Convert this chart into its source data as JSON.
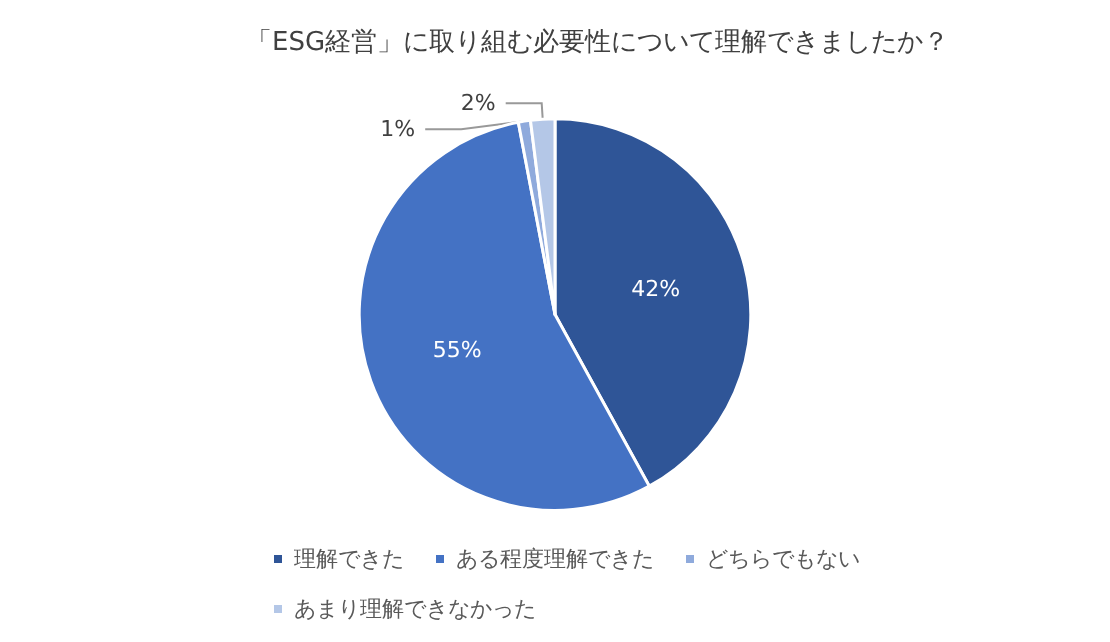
{
  "chart_data": {
    "type": "pie",
    "title": "「ESG経営」に取り組む必要性について理解できましたか？",
    "categories": [
      "理解できた",
      "ある程度理解できた",
      "どちらでもない",
      "あまり理解できなかった"
    ],
    "values": [
      42,
      55,
      1,
      2
    ],
    "value_labels": [
      "42%",
      "55%",
      "1%",
      "2%"
    ],
    "colors": [
      "#2f5597",
      "#4472c4",
      "#8faadc",
      "#b4c7e7"
    ],
    "legend": "bottom"
  }
}
